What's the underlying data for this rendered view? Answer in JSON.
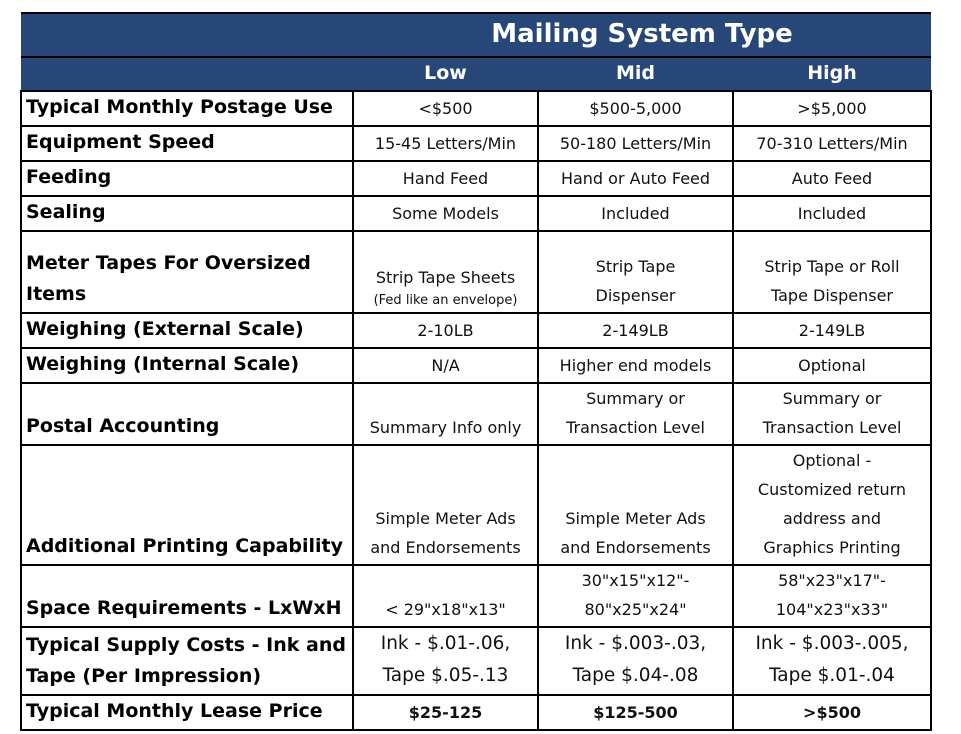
{
  "header": {
    "title": "Mailing System Type",
    "columns": [
      "Low",
      "Mid",
      "High"
    ]
  },
  "rows": [
    {
      "label": [
        "Typical Monthly Postage Use"
      ],
      "cells": [
        [
          "<$500"
        ],
        [
          "$500-5,000"
        ],
        [
          ">$5,000"
        ]
      ]
    },
    {
      "label": [
        "Equipment Speed"
      ],
      "cells": [
        [
          "15-45 Letters/Min"
        ],
        [
          "50-180 Letters/Min"
        ],
        [
          "70-310 Letters/Min"
        ]
      ]
    },
    {
      "label": [
        "Feeding"
      ],
      "cells": [
        [
          "Hand Feed"
        ],
        [
          "Hand or Auto Feed"
        ],
        [
          "Auto Feed"
        ]
      ]
    },
    {
      "label": [
        "Sealing"
      ],
      "cells": [
        [
          "Some Models"
        ],
        [
          "Included"
        ],
        [
          "Included"
        ]
      ]
    },
    {
      "label": [
        "Meter Tapes For Oversized",
        "Items"
      ],
      "cells": [
        {
          "lines": [
            "Strip Tape Sheets"
          ],
          "note": "(Fed like an envelope)"
        },
        [
          "Strip Tape",
          "Dispenser"
        ],
        [
          "Strip Tape or Roll",
          "Tape Dispenser"
        ]
      ]
    },
    {
      "label": [
        "Weighing (External Scale)"
      ],
      "cells": [
        [
          "2-10LB"
        ],
        [
          "2-149LB"
        ],
        [
          "2-149LB"
        ]
      ]
    },
    {
      "label": [
        "Weighing (Internal Scale)"
      ],
      "cells": [
        [
          "N/A"
        ],
        [
          "Higher end models"
        ],
        [
          "Optional"
        ]
      ]
    },
    {
      "label": [
        "Postal Accounting"
      ],
      "cells": [
        [
          "Summary Info only"
        ],
        [
          "Summary or",
          "Transaction Level"
        ],
        [
          "Summary or",
          "Transaction Level"
        ]
      ]
    },
    {
      "label": [
        "Additional Printing Capability"
      ],
      "cells": [
        [
          "Simple Meter Ads",
          "and Endorsements"
        ],
        [
          "Simple Meter Ads",
          "and Endorsements"
        ],
        [
          "Optional -",
          "Customized return",
          "address and",
          "Graphics Printing"
        ]
      ]
    },
    {
      "label": [
        "Space Requirements - LxWxH"
      ],
      "cells": [
        [
          "< 29\"x18\"x13\""
        ],
        [
          "30\"x15\"x12\"-",
          "80\"x25\"x24\""
        ],
        [
          "58\"x23\"x17\"-",
          "104\"x23\"x33\""
        ]
      ]
    },
    {
      "label": [
        "Typical Supply Costs - Ink and",
        "Tape (Per Impression)"
      ],
      "cells": [
        [
          "Ink - $.01-.06,",
          "Tape $.05-.13"
        ],
        [
          "Ink - $.003-.03,",
          "Tape $.04-.08"
        ],
        [
          "Ink - $.003-.005,",
          "Tape $.01-.04"
        ]
      ],
      "large": true
    },
    {
      "label": [
        "Typical Monthly Lease Price"
      ],
      "cells": [
        [
          "$25-125"
        ],
        [
          "$125-500"
        ],
        [
          ">$500"
        ]
      ],
      "bold": true
    }
  ]
}
